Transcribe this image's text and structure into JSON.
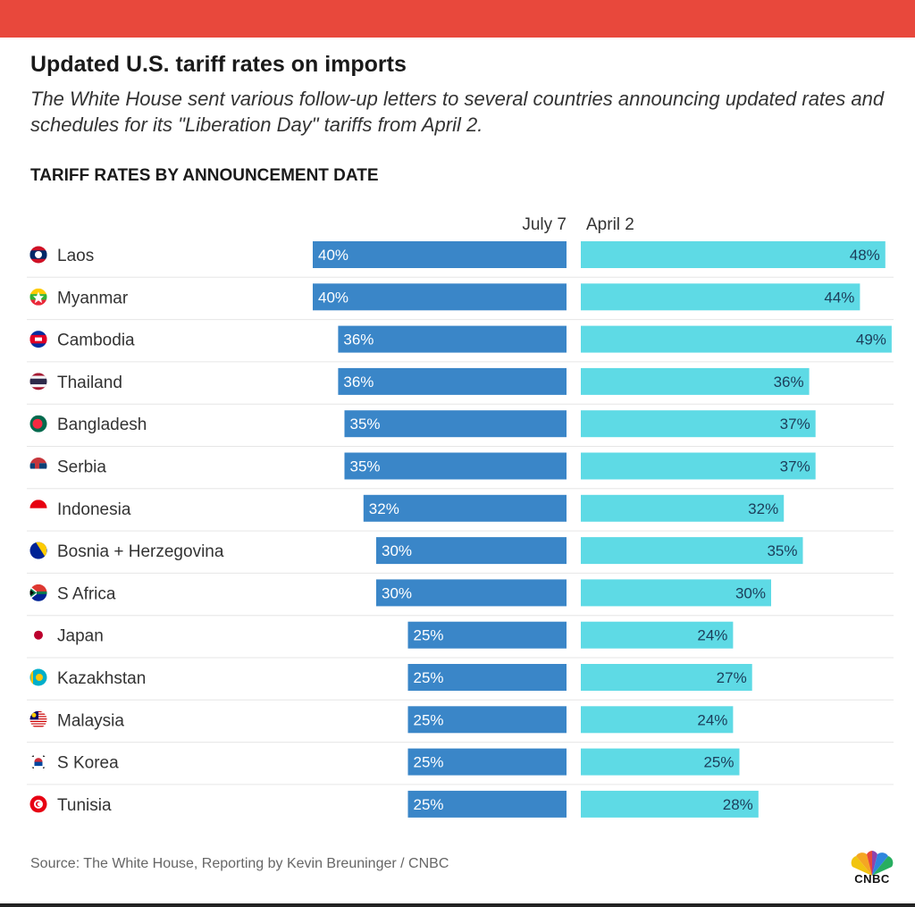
{
  "header": {
    "bar_color": "#e8483c",
    "title": "Updated U.S. tariff rates on imports",
    "subtitle": "The White House sent various follow-up letters to several countries announcing updated rates and schedules for its \"Liberation Day\" tariffs from April 2."
  },
  "chart_data": {
    "type": "bar",
    "title": "TARIFF RATES BY ANNOUNCEMENT DATE",
    "xlabel": "",
    "ylabel": "",
    "ylim": [
      0,
      50
    ],
    "legend_position": "top-center",
    "categories": [
      "Laos",
      "Myanmar",
      "Cambodia",
      "Thailand",
      "Bangladesh",
      "Serbia",
      "Indonesia",
      "Bosnia + Herzegovina",
      "S Africa",
      "Japan",
      "Kazakhstan",
      "Malaysia",
      "S Korea",
      "Tunisia"
    ],
    "flag_icons": [
      "laos-flag-icon",
      "myanmar-flag-icon",
      "cambodia-flag-icon",
      "thailand-flag-icon",
      "bangladesh-flag-icon",
      "serbia-flag-icon",
      "indonesia-flag-icon",
      "bosnia-flag-icon",
      "south-africa-flag-icon",
      "japan-flag-icon",
      "kazakhstan-flag-icon",
      "malaysia-flag-icon",
      "south-korea-flag-icon",
      "tunisia-flag-icon"
    ],
    "series": [
      {
        "name": "July 7",
        "color": "#3a86c8",
        "values": [
          40,
          40,
          36,
          36,
          35,
          35,
          32,
          30,
          30,
          25,
          25,
          25,
          25,
          25
        ],
        "labels": [
          "40%",
          "40%",
          "36%",
          "36%",
          "35%",
          "35%",
          "32%",
          "30%",
          "30%",
          "25%",
          "25%",
          "25%",
          "25%",
          "25%"
        ]
      },
      {
        "name": "April 2",
        "color": "#5edae5",
        "values": [
          48,
          44,
          49,
          36,
          37,
          37,
          32,
          35,
          30,
          24,
          27,
          24,
          25,
          28
        ],
        "labels": [
          "48%",
          "44%",
          "49%",
          "36%",
          "37%",
          "37%",
          "32%",
          "35%",
          "30%",
          "24%",
          "27%",
          "24%",
          "25%",
          "28%"
        ]
      }
    ]
  },
  "footer": {
    "source": "Source: The White House, Reporting by Kevin Breuninger / CNBC",
    "logo_text": "CNBC"
  }
}
